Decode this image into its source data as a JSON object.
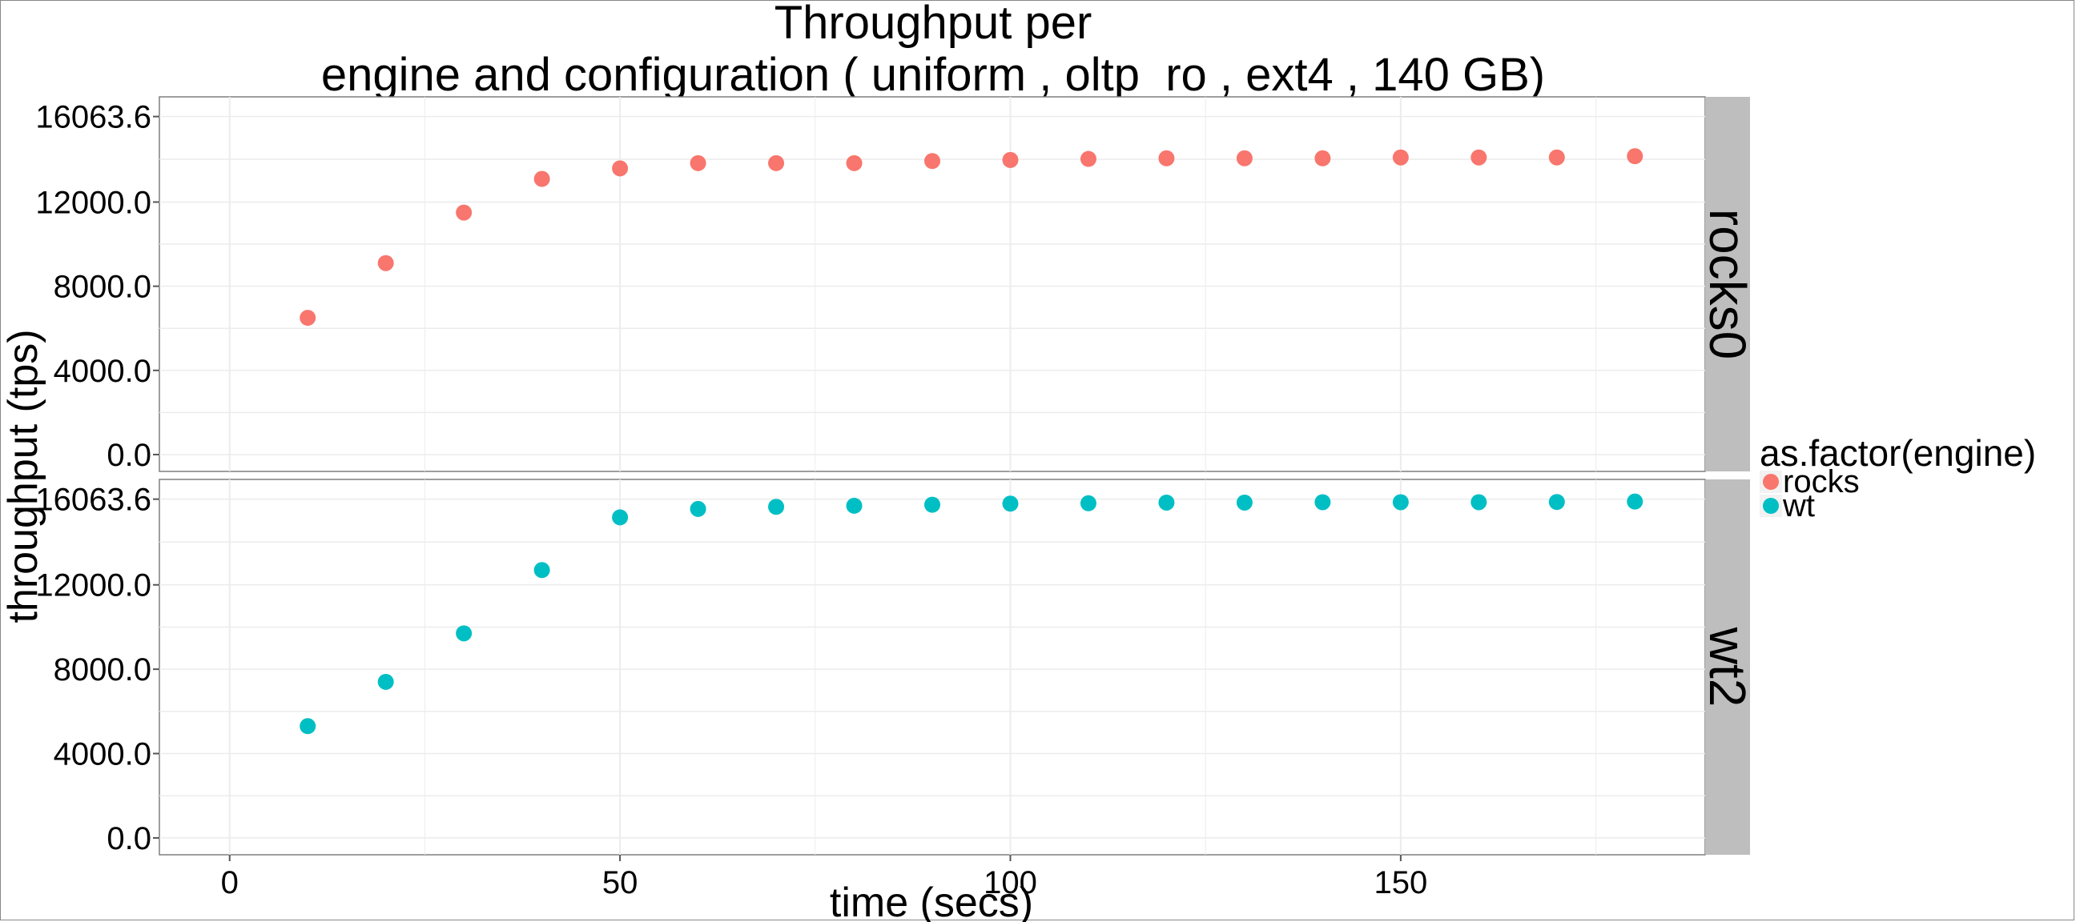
{
  "chart_data": {
    "type": "scatter",
    "title_line1": "Throughput per",
    "title_line2": "engine and configuration ( uniform , oltp_ro , ext4 ,  140 GB)",
    "xlabel": "time (secs)",
    "ylabel": "throughput (tps)",
    "x_ticks": [
      "0",
      "50",
      "100",
      "150"
    ],
    "x_tick_values": [
      0,
      50,
      100,
      150
    ],
    "xlim": [
      -9,
      189
    ],
    "y_ticks": [
      "0.0",
      "4000.0",
      "8000.0",
      "12000.0",
      "16063.6"
    ],
    "y_tick_values": [
      0,
      4000,
      8000,
      12000,
      16063.6
    ],
    "ylim": [
      -800,
      17000
    ],
    "grid": true,
    "legend": {
      "title": "as.factor(engine)",
      "position": "right",
      "entries": [
        {
          "label": "rocks",
          "color": "#F8766D"
        },
        {
          "label": "wt",
          "color": "#00BFC4"
        }
      ]
    },
    "panels": [
      {
        "strip": "rocks0",
        "series_name": "rocks",
        "color": "#F8766D",
        "x": [
          10,
          20,
          30,
          40,
          50,
          60,
          70,
          80,
          90,
          100,
          110,
          120,
          130,
          140,
          150,
          160,
          170,
          180
        ],
        "y": [
          6500,
          9100,
          11500,
          13100,
          13600,
          13850,
          13850,
          13850,
          13950,
          14000,
          14050,
          14080,
          14080,
          14080,
          14120,
          14120,
          14120,
          14180
        ]
      },
      {
        "strip": "wt2",
        "series_name": "wt",
        "color": "#00BFC4",
        "x": [
          10,
          20,
          30,
          40,
          50,
          60,
          70,
          80,
          90,
          100,
          110,
          120,
          130,
          140,
          150,
          160,
          170,
          180
        ],
        "y": [
          5300,
          7400,
          9700,
          12700,
          15200,
          15600,
          15700,
          15750,
          15800,
          15850,
          15870,
          15900,
          15900,
          15920,
          15920,
          15920,
          15930,
          15950
        ]
      }
    ]
  },
  "colors": {
    "panel_background": "#ffffff",
    "grid": "#ececec",
    "strip_background": "#bebebe",
    "panel_border": "#7f7f7f"
  }
}
